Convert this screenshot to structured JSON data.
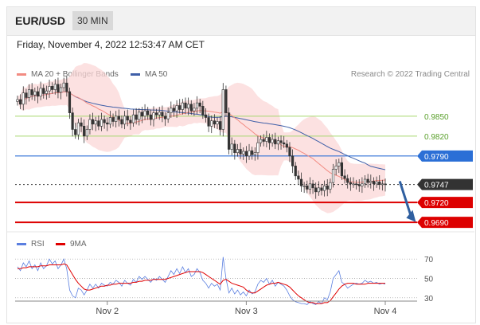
{
  "header": {
    "symbol": "EUR/USD",
    "timeframe": "30 MIN"
  },
  "datetime": "Friday, November 4, 2022 12:53:47 AM CET",
  "legend": {
    "ma20": {
      "label": "MA 20 + Bollinger Bands",
      "color": "#f28b82"
    },
    "ma50": {
      "label": "MA 50",
      "color": "#3f5fa8"
    },
    "credit": "Research © 2022 Trading Central"
  },
  "rsi_legend": {
    "rsi": {
      "label": "RSI",
      "color": "#5b7fe0"
    },
    "ma9": {
      "label": "9MA",
      "color": "#e00000"
    }
  },
  "chart_data": [
    {
      "type": "candlestick",
      "ylim": [
        0.9665,
        0.9905
      ],
      "x_ticks": [
        {
          "index": 31,
          "label": "Nov 2"
        },
        {
          "index": 79,
          "label": "Nov 3"
        },
        {
          "index": 127,
          "label": "Nov 4"
        }
      ],
      "levels": [
        {
          "value": 0.985,
          "label": "0.9850",
          "style": "thin",
          "color": "#a6d66f",
          "label_color": "#5aa02c",
          "badge": false
        },
        {
          "value": 0.982,
          "label": "0.9820",
          "style": "thin",
          "color": "#a6d66f",
          "label_color": "#5aa02c",
          "badge": false
        },
        {
          "value": 0.979,
          "label": "0.9790",
          "style": "medium",
          "color": "#2b6fd6",
          "label_color": "#ffffff",
          "badge": true
        },
        {
          "value": 0.9747,
          "label": "0.9747",
          "style": "dotted",
          "color": "#333333",
          "label_color": "#ffffff",
          "badge": true
        },
        {
          "value": 0.972,
          "label": "0.9720",
          "style": "thick",
          "color": "#dd0000",
          "label_color": "#ffffff",
          "badge": true
        },
        {
          "value": 0.969,
          "label": "0.9690",
          "style": "thick",
          "color": "#dd0000",
          "label_color": "#ffffff",
          "badge": true
        }
      ],
      "arrow": {
        "from": [
          0.9752,
          132
        ],
        "to": [
          0.9693,
          137
        ],
        "color": "#2f5fa0"
      },
      "close": [
        0.9875,
        0.9868,
        0.9885,
        0.9878,
        0.989,
        0.9882,
        0.9887,
        0.988,
        0.9892,
        0.9884,
        0.9888,
        0.9895,
        0.989,
        0.9898,
        0.9886,
        0.9893,
        0.99,
        0.9887,
        0.9855,
        0.983,
        0.9822,
        0.984,
        0.9835,
        0.982,
        0.983,
        0.9845,
        0.9838,
        0.9843,
        0.9835,
        0.9845,
        0.984,
        0.9838,
        0.9848,
        0.9842,
        0.985,
        0.9845,
        0.9838,
        0.985,
        0.9844,
        0.984,
        0.9852,
        0.9845,
        0.9856,
        0.985,
        0.9858,
        0.9852,
        0.9845,
        0.9855,
        0.9852,
        0.9856,
        0.985,
        0.9846,
        0.9855,
        0.9862,
        0.9858,
        0.9866,
        0.986,
        0.987,
        0.9862,
        0.9868,
        0.9858,
        0.9862,
        0.987,
        0.9865,
        0.9852,
        0.9848,
        0.9835,
        0.9843,
        0.9838,
        0.9842,
        0.983,
        0.989,
        0.9855,
        0.98,
        0.9808,
        0.9795,
        0.98,
        0.9793,
        0.9797,
        0.979,
        0.9798,
        0.9792,
        0.9795,
        0.981,
        0.9815,
        0.9812,
        0.9818,
        0.981,
        0.9815,
        0.9808,
        0.9813,
        0.981,
        0.9808,
        0.9803,
        0.979,
        0.9775,
        0.976,
        0.9755,
        0.9745,
        0.9745,
        0.974,
        0.9748,
        0.9742,
        0.9736,
        0.9742,
        0.9738,
        0.9745,
        0.974,
        0.975,
        0.977,
        0.9775,
        0.978,
        0.976,
        0.9756,
        0.975,
        0.9748,
        0.9748,
        0.9747,
        0.9745,
        0.9748,
        0.9755,
        0.975,
        0.9752,
        0.9748,
        0.9751,
        0.9747,
        0.9748,
        0.9747
      ]
    },
    {
      "type": "line",
      "series": [
        {
          "name": "RSI",
          "color": "#5b7fe0"
        },
        {
          "name": "9MA",
          "color": "#e00000"
        }
      ],
      "ylim": [
        20,
        80
      ],
      "y_ticks": [
        70,
        50,
        30
      ],
      "rsi": [
        62,
        58,
        66,
        62,
        68,
        60,
        64,
        58,
        66,
        60,
        63,
        70,
        65,
        68,
        60,
        64,
        70,
        60,
        38,
        32,
        30,
        40,
        38,
        33,
        38,
        44,
        40,
        44,
        40,
        45,
        43,
        42,
        46,
        44,
        48,
        46,
        42,
        48,
        45,
        43,
        49,
        46,
        52,
        49,
        52,
        49,
        46,
        50,
        48,
        52,
        49,
        46,
        52,
        58,
        54,
        60,
        55,
        62,
        56,
        60,
        52,
        54,
        60,
        56,
        48,
        45,
        40,
        45,
        42,
        44,
        38,
        72,
        50,
        35,
        40,
        34,
        38,
        33,
        36,
        32,
        38,
        34,
        36,
        44,
        48,
        46,
        50,
        44,
        48,
        42,
        46,
        44,
        42,
        38,
        32,
        28,
        26,
        25,
        24,
        24,
        23,
        26,
        24,
        23,
        26,
        24,
        30,
        28,
        36,
        50,
        54,
        58,
        46,
        44,
        40,
        42,
        44,
        45,
        44,
        45,
        48,
        46,
        47,
        45,
        46,
        44,
        45,
        44
      ],
      "ma9": [
        60,
        60,
        61,
        61,
        62,
        62,
        62,
        62,
        63,
        63,
        63,
        64,
        64,
        64,
        64,
        64,
        65,
        64,
        59,
        54,
        49,
        45,
        42,
        39,
        38,
        38,
        39,
        40,
        41,
        42,
        42,
        43,
        43,
        44,
        44,
        45,
        45,
        45,
        45,
        45,
        46,
        46,
        47,
        47,
        48,
        48,
        48,
        49,
        49,
        49,
        49,
        49,
        50,
        51,
        52,
        53,
        54,
        55,
        56,
        57,
        57,
        57,
        57,
        57,
        56,
        54,
        52,
        50,
        48,
        46,
        44,
        48,
        49,
        47,
        45,
        44,
        43,
        42,
        41,
        38,
        36,
        35,
        35,
        37,
        39,
        41,
        43,
        44,
        45,
        45,
        46,
        45,
        44,
        43,
        41,
        38,
        35,
        32,
        30,
        28,
        26,
        25,
        25,
        24,
        24,
        24,
        25,
        25,
        27,
        31,
        35,
        39,
        42,
        44,
        45,
        45,
        45,
        44,
        44,
        44,
        44,
        45,
        45,
        45,
        45,
        45,
        45,
        45
      ]
    }
  ]
}
